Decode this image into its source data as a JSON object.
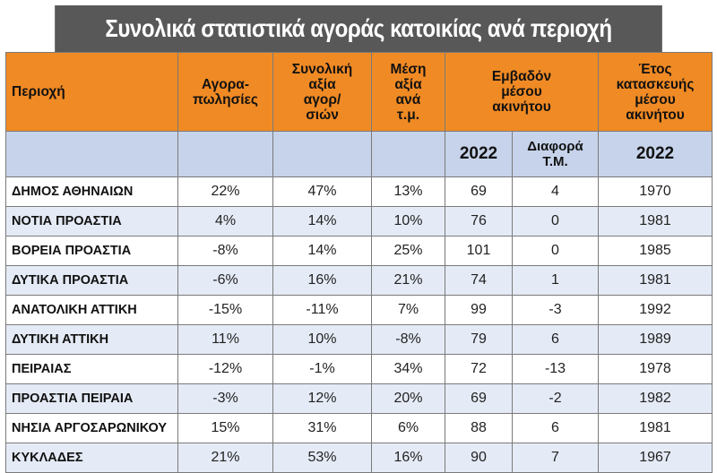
{
  "title": "Συνολικά στατιστικά αγοράς κατοικίας ανά περιοχή",
  "headers": {
    "region": "Περιοχή",
    "sales_line1": "Αγορα-",
    "sales_line2": "πωλησίες",
    "total_line1": "Συνολική",
    "total_line2": "αξία",
    "total_line3": "αγορ/",
    "total_line4": "σιών",
    "avg_line1": "Μέση",
    "avg_line2": "αξία",
    "avg_line3": "ανά",
    "avg_line4": "τ.μ.",
    "area_line1": "Εμβαδόν",
    "area_line2": "μέσου",
    "area_line3": "ακινήτου",
    "year_line1": "Έτος",
    "year_line2": "κατασκευής",
    "year_line3": "μέσου",
    "year_line4": "ακινήτου"
  },
  "subheaders": {
    "area_year": "2022",
    "area_diff_line1": "Διαφορά",
    "area_diff_line2": "Τ.Μ.",
    "built_year": "2022"
  },
  "rows": [
    {
      "region": "ΔΗΜΟΣ ΑΘΗΝΑΙΩΝ",
      "sales": "22%",
      "total": "47%",
      "avg": "13%",
      "area": "69",
      "diff": "4",
      "year": "1970"
    },
    {
      "region": "ΝΟΤΙΑ ΠΡΟΑΣΤΙΑ",
      "sales": "4%",
      "total": "14%",
      "avg": "10%",
      "area": "76",
      "diff": "0",
      "year": "1981"
    },
    {
      "region": "ΒΟΡΕΙΑ ΠΡΟΑΣΤΙΑ",
      "sales": "-8%",
      "total": "14%",
      "avg": "25%",
      "area": "101",
      "diff": "0",
      "year": "1985"
    },
    {
      "region": "ΔΥΤΙΚΑ ΠΡΟΑΣΤΙΑ",
      "sales": "-6%",
      "total": "16%",
      "avg": "21%",
      "area": "74",
      "diff": "1",
      "year": "1981"
    },
    {
      "region": "ΑΝΑΤΟΛΙΚΗ ΑΤΤΙΚΗ",
      "sales": "-15%",
      "total": "-11%",
      "avg": "7%",
      "area": "99",
      "diff": "-3",
      "year": "1992"
    },
    {
      "region": "ΔΥΤΙΚΗ ΑΤΤΙΚΗ",
      "sales": "11%",
      "total": "10%",
      "avg": "-8%",
      "area": "79",
      "diff": "6",
      "year": "1989"
    },
    {
      "region": "ΠΕΙΡΑΙΑΣ",
      "sales": "-12%",
      "total": "-1%",
      "avg": "34%",
      "area": "72",
      "diff": "-13",
      "year": "1978"
    },
    {
      "region": "ΠΡΟΑΣΤΙΑ ΠΕΙΡΑΙΑ",
      "sales": "-3%",
      "total": "12%",
      "avg": "20%",
      "area": "69",
      "diff": "-2",
      "year": "1982"
    },
    {
      "region": "ΝΗΣΙΑ ΑΡΓΟΣΑΡΩΝΙΚΟΥ",
      "sales": "15%",
      "total": "31%",
      "avg": "6%",
      "area": "88",
      "diff": "6",
      "year": "1981"
    },
    {
      "region": "ΚΥΚΛΑΔΕΣ",
      "sales": "21%",
      "total": "53%",
      "avg": "16%",
      "area": "90",
      "diff": "7",
      "year": "1967"
    }
  ],
  "colors": {
    "title_bg": "#585858",
    "header_bg": "#f08a24",
    "subheader_bg": "#c6d3ea",
    "alt_row_bg": "#e5ebf6"
  }
}
